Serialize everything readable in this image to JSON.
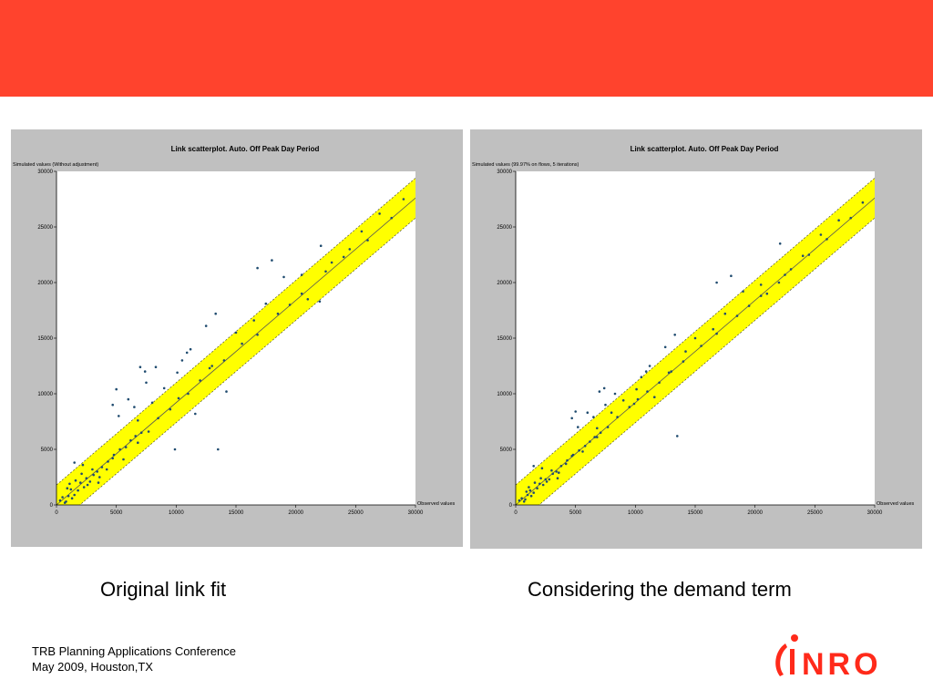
{
  "colors": {
    "band": "#ff432d",
    "accent": "#ff2a1a",
    "band_fill": "#ffff00",
    "point": "#1f4b6f"
  },
  "left_caption": "Original link fit",
  "right_caption": "Considering the demand term",
  "footer": {
    "line1": "TRB Planning Applications Conference",
    "line2": "May 2009, Houston,TX"
  },
  "logo": {
    "text": "NRO",
    "icon": "inro-logo-icon"
  },
  "chart_data": [
    {
      "type": "scatter",
      "title": "Link scatterplot. Auto. Off Peak Day Period",
      "ylabel": "Simulated values (Without adjustment)",
      "xlabel": "Observed values",
      "xlim": [
        0,
        30000
      ],
      "ylim": [
        0,
        30000
      ],
      "xticks": [
        "0",
        "5000",
        "10000",
        "15000",
        "20000",
        "25000",
        "30000"
      ],
      "yticks": [
        "0",
        "5000",
        "10000",
        "15000",
        "20000",
        "25000",
        "30000"
      ],
      "reference_line": "y = 0.92x",
      "tolerance_band": true,
      "points": [
        [
          13500,
          5000
        ],
        [
          16800,
          21300
        ],
        [
          18000,
          22000
        ],
        [
          22100,
          23300
        ],
        [
          14200,
          10200
        ],
        [
          10900,
          13700
        ],
        [
          11200,
          14000
        ],
        [
          10500,
          13000
        ],
        [
          12500,
          16100
        ],
        [
          13300,
          17200
        ],
        [
          7000,
          12400
        ],
        [
          7400,
          12000
        ],
        [
          8300,
          12400
        ],
        [
          5000,
          10400
        ],
        [
          4700,
          9000
        ],
        [
          6000,
          9500
        ],
        [
          5200,
          8000
        ],
        [
          7500,
          11000
        ],
        [
          6500,
          8800
        ],
        [
          8000,
          9200
        ],
        [
          9900,
          5000
        ],
        [
          6800,
          7600
        ],
        [
          9000,
          10500
        ],
        [
          10100,
          11900
        ],
        [
          11600,
          8200
        ],
        [
          12800,
          12300
        ],
        [
          15000,
          15500
        ],
        [
          16500,
          16600
        ],
        [
          17500,
          18100
        ],
        [
          19000,
          20500
        ],
        [
          20500,
          20700
        ],
        [
          21000,
          18500
        ],
        [
          22000,
          18300
        ],
        [
          24000,
          22300
        ],
        [
          25500,
          24600
        ],
        [
          27000,
          26200
        ],
        [
          29000,
          27500
        ],
        [
          1500,
          3800
        ],
        [
          2200,
          3600
        ],
        [
          3000,
          3200
        ],
        [
          3500,
          2000
        ],
        [
          4200,
          3200
        ],
        [
          4700,
          4200
        ],
        [
          5600,
          4100
        ],
        [
          6800,
          5600
        ],
        [
          7700,
          6600
        ],
        [
          8500,
          7800
        ],
        [
          9500,
          8600
        ],
        [
          10200,
          9600
        ],
        [
          11000,
          10000
        ],
        [
          12000,
          11200
        ],
        [
          13000,
          12500
        ],
        [
          14000,
          13000
        ],
        [
          15500,
          14500
        ],
        [
          16800,
          15300
        ],
        [
          18500,
          17200
        ],
        [
          19500,
          18000
        ],
        [
          20500,
          19000
        ],
        [
          22500,
          21000
        ],
        [
          23000,
          21800
        ],
        [
          24500,
          23000
        ],
        [
          26000,
          23800
        ],
        [
          28000,
          25800
        ],
        [
          800,
          300
        ],
        [
          1000,
          800
        ],
        [
          1200,
          1400
        ],
        [
          1500,
          900
        ],
        [
          1800,
          1300
        ],
        [
          2000,
          2000
        ],
        [
          2300,
          1600
        ],
        [
          2500,
          2400
        ],
        [
          2800,
          2100
        ],
        [
          3100,
          2700
        ],
        [
          3400,
          3000
        ],
        [
          3800,
          3400
        ],
        [
          4300,
          3900
        ],
        [
          4800,
          4500
        ],
        [
          5300,
          5000
        ],
        [
          5800,
          5200
        ],
        [
          6200,
          5800
        ],
        [
          6600,
          6200
        ],
        [
          7100,
          6500
        ],
        [
          500,
          700
        ],
        [
          300,
          400
        ],
        [
          700,
          200
        ],
        [
          1100,
          1900
        ],
        [
          1600,
          2200
        ],
        [
          2100,
          2800
        ],
        [
          2600,
          1800
        ],
        [
          900,
          1500
        ],
        [
          1300,
          600
        ],
        [
          3600,
          2500
        ]
      ]
    },
    {
      "type": "scatter",
      "title": "Link scatterplot. Auto. Off Peak Day Period",
      "ylabel": "Simulated values (99.97% on flows, 5 iterations)",
      "xlabel": "Observed values",
      "xlim": [
        0,
        30000
      ],
      "ylim": [
        0,
        30000
      ],
      "xticks": [
        "0",
        "5000",
        "10000",
        "15000",
        "20000",
        "25000",
        "30000"
      ],
      "yticks": [
        "0",
        "5000",
        "10000",
        "15000",
        "20000",
        "25000",
        "30000"
      ],
      "reference_line": "y = 0.92x",
      "tolerance_band": true,
      "points": [
        [
          13500,
          6200
        ],
        [
          16800,
          20000
        ],
        [
          18000,
          20600
        ],
        [
          22100,
          23500
        ],
        [
          14200,
          13800
        ],
        [
          10900,
          12000
        ],
        [
          11200,
          12500
        ],
        [
          10500,
          11500
        ],
        [
          12500,
          14200
        ],
        [
          13300,
          15300
        ],
        [
          7000,
          10200
        ],
        [
          7400,
          10500
        ],
        [
          8300,
          10000
        ],
        [
          5000,
          8400
        ],
        [
          4700,
          7800
        ],
        [
          6000,
          8300
        ],
        [
          5200,
          7000
        ],
        [
          7500,
          9000
        ],
        [
          6500,
          7900
        ],
        [
          8000,
          8300
        ],
        [
          9900,
          9100
        ],
        [
          6800,
          6900
        ],
        [
          9000,
          9400
        ],
        [
          10100,
          10400
        ],
        [
          11600,
          9700
        ],
        [
          12800,
          11900
        ],
        [
          15000,
          15000
        ],
        [
          16500,
          15800
        ],
        [
          17500,
          17200
        ],
        [
          19000,
          19200
        ],
        [
          20500,
          19800
        ],
        [
          21000,
          19000
        ],
        [
          22000,
          20000
        ],
        [
          24000,
          22400
        ],
        [
          25500,
          24300
        ],
        [
          27000,
          25600
        ],
        [
          29000,
          27200
        ],
        [
          1500,
          3500
        ],
        [
          2200,
          3300
        ],
        [
          3000,
          3100
        ],
        [
          3500,
          2400
        ],
        [
          4200,
          3700
        ],
        [
          4700,
          4400
        ],
        [
          5600,
          4800
        ],
        [
          6800,
          6100
        ],
        [
          7700,
          7000
        ],
        [
          8500,
          7900
        ],
        [
          9500,
          8800
        ],
        [
          10200,
          9500
        ],
        [
          11000,
          10200
        ],
        [
          12000,
          11000
        ],
        [
          13000,
          12000
        ],
        [
          14000,
          12900
        ],
        [
          15500,
          14300
        ],
        [
          16800,
          15400
        ],
        [
          18500,
          17000
        ],
        [
          19500,
          17900
        ],
        [
          20500,
          18800
        ],
        [
          22500,
          20700
        ],
        [
          23000,
          21200
        ],
        [
          24500,
          22500
        ],
        [
          26000,
          23900
        ],
        [
          28000,
          25800
        ],
        [
          800,
          500
        ],
        [
          1000,
          900
        ],
        [
          1200,
          1300
        ],
        [
          1500,
          1100
        ],
        [
          1800,
          1500
        ],
        [
          2000,
          1900
        ],
        [
          2300,
          1800
        ],
        [
          2500,
          2300
        ],
        [
          2800,
          2300
        ],
        [
          3100,
          2800
        ],
        [
          3400,
          3000
        ],
        [
          3800,
          3500
        ],
        [
          4300,
          4000
        ],
        [
          4800,
          4500
        ],
        [
          5300,
          4900
        ],
        [
          5800,
          5300
        ],
        [
          6200,
          5700
        ],
        [
          6600,
          6100
        ],
        [
          7100,
          6500
        ],
        [
          500,
          600
        ],
        [
          300,
          400
        ],
        [
          700,
          300
        ],
        [
          1100,
          1600
        ],
        [
          1600,
          2000
        ],
        [
          2100,
          2400
        ],
        [
          2600,
          2100
        ],
        [
          900,
          1200
        ],
        [
          1300,
          800
        ],
        [
          3600,
          2900
        ]
      ]
    }
  ]
}
